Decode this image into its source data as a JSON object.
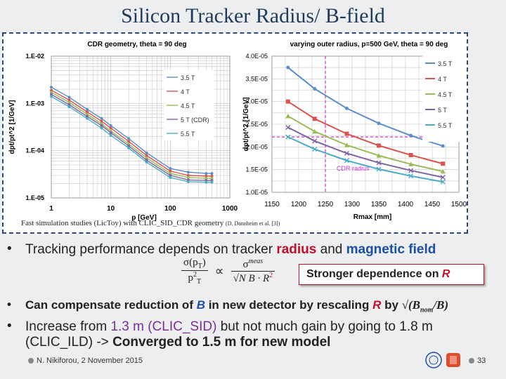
{
  "slide": {
    "title": "Silicon Tracker Radius/ B-field",
    "caption_main": "Fast simulation studies (LicToy) with CLIC_SID_CDR geometry ",
    "caption_small": "(D. Dannheim et al. [3])",
    "footer_author": "N. Nikiforou, 2 November 2015",
    "page_number": "33"
  },
  "bullets": {
    "b1_pre": "Tracking performance depends on  tracker ",
    "b1_radius": "radius",
    "b1_and": " and ",
    "b1_field": "magnetic field",
    "callout_pre": "Stronger dependence on ",
    "callout_R": "R",
    "b2_pre": "Can compensate reduction of ",
    "b2_B": "B",
    "b2_mid": " in new detector by rescaling ",
    "b2_R": "R",
    "b2_by": " by ",
    "b3_line1_pre": "Increase from ",
    "b3_sid": "1.3 m (CLIC_SID)",
    "b3_line1_post": " but not much gain by going to 1.8 m",
    "b3_line2_pre": "(CLIC_ILD) -> ",
    "b3_line2_bold": "Converged to 1.5 m  for new model"
  },
  "formula": {
    "num_left": "σ(p",
    "num_left_sub": "T",
    "num_left_close": ")",
    "den_left": "p",
    "den_left_sup": "2",
    "den_left_sub": "T",
    "propto": "∝",
    "num_right": "σ",
    "num_right_sup": "meas",
    "den_right": "√N B · R",
    "den_right_sup": "2",
    "rescale": "√(B",
    "rescale_sub": "nom",
    "rescale_post": "/B)"
  },
  "chart_data": [
    {
      "type": "line",
      "title": "CDR geometry, theta = 90 deg",
      "xlabel": "p [GeV]",
      "ylabel": "dpt/pt^2 [1/GeV]",
      "xscale": "log",
      "yscale": "log",
      "xlim": [
        1,
        1000
      ],
      "ylim": [
        1e-05,
        0.01
      ],
      "x_ticks": [
        "1",
        "10",
        "100",
        "1000"
      ],
      "y_ticks": [
        "1.E-05",
        "1.E-04",
        "1.E-03",
        "1.E-02"
      ],
      "grid": true,
      "legend_position": "top-right",
      "x": [
        1,
        2,
        4,
        7,
        10,
        20,
        40,
        100,
        200,
        400,
        500
      ],
      "series": [
        {
          "name": "3.5 T",
          "color": "#5b8ec9",
          "values": [
            0.0022,
            0.00135,
            0.00075,
            0.00048,
            0.00034,
            0.00018,
            9e-05,
            4.2e-05,
            3.5e-05,
            3.3e-05,
            3.3e-05
          ]
        },
        {
          "name": "4 T",
          "color": "#d9534f",
          "values": [
            0.0019,
            0.00118,
            0.00066,
            0.00042,
            0.0003,
            0.000157,
            7.9e-05,
            3.7e-05,
            3e-05,
            2.9e-05,
            2.9e-05
          ]
        },
        {
          "name": "4.5 T",
          "color": "#9bbb59",
          "values": [
            0.00172,
            0.00105,
            0.00059,
            0.00037,
            0.00026,
            0.000139,
            7e-05,
            3.3e-05,
            2.7e-05,
            2.6e-05,
            2.6e-05
          ]
        },
        {
          "name": "5 T (CDR)",
          "color": "#8064a2",
          "values": [
            0.00155,
            0.00094,
            0.00053,
            0.00034,
            0.00024,
            0.000126,
            6.3e-05,
            3e-05,
            2.4e-05,
            2.35e-05,
            2.35e-05
          ]
        },
        {
          "name": "5.5 T",
          "color": "#4bacc6",
          "values": [
            0.0014,
            0.00085,
            0.00048,
            0.0003,
            0.00021,
            0.000114,
            5.7e-05,
            2.7e-05,
            2.2e-05,
            2.15e-05,
            2.15e-05
          ]
        }
      ]
    },
    {
      "type": "line",
      "title": "varying outer radius, p=500 GeV, theta = 90 deg",
      "xlabel": "Rmax [mm]",
      "ylabel": "dpt/pt^2 [1/GeV]",
      "xlim": [
        1150,
        1500
      ],
      "ylim": [
        1e-05,
        4e-05
      ],
      "x_ticks": [
        "1150",
        "1200",
        "1250",
        "1300",
        "1350",
        "1400",
        "1450",
        "1500"
      ],
      "y_ticks": [
        "1.0E-05",
        "1.5E-05",
        "2.0E-05",
        "2.5E-05",
        "3.0E-05",
        "3.5E-05",
        "4.0E-05"
      ],
      "grid": true,
      "legend_position": "right",
      "x": [
        1180,
        1230,
        1290,
        1350,
        1410,
        1470
      ],
      "series": [
        {
          "name": "3.5 T",
          "color": "#5b8ec9",
          "values": [
            3.75e-05,
            3.28e-05,
            2.85e-05,
            2.52e-05,
            2.25e-05,
            2.02e-05
          ]
        },
        {
          "name": "4 T",
          "color": "#d9534f",
          "values": [
            3e-05,
            2.62e-05,
            2.29e-05,
            2.03e-05,
            1.82e-05,
            1.63e-05
          ]
        },
        {
          "name": "4.5 T",
          "color": "#9bbb59",
          "values": [
            2.68e-05,
            2.34e-05,
            2.04e-05,
            1.81e-05,
            1.62e-05,
            1.46e-05
          ]
        },
        {
          "name": "5 T",
          "color": "#8064a2",
          "values": [
            2.43e-05,
            2.13e-05,
            1.86e-05,
            1.65e-05,
            1.48e-05,
            1.33e-05
          ]
        },
        {
          "name": "5.5 T",
          "color": "#4bacc6",
          "values": [
            2.22e-05,
            1.95e-05,
            1.7e-05,
            1.51e-05,
            1.36e-05,
            1.23e-05
          ]
        }
      ],
      "annotations": [
        {
          "text": "CDR radius",
          "color": "#cc33cc",
          "x": 1250,
          "y": 2.22e-05
        }
      ]
    }
  ]
}
